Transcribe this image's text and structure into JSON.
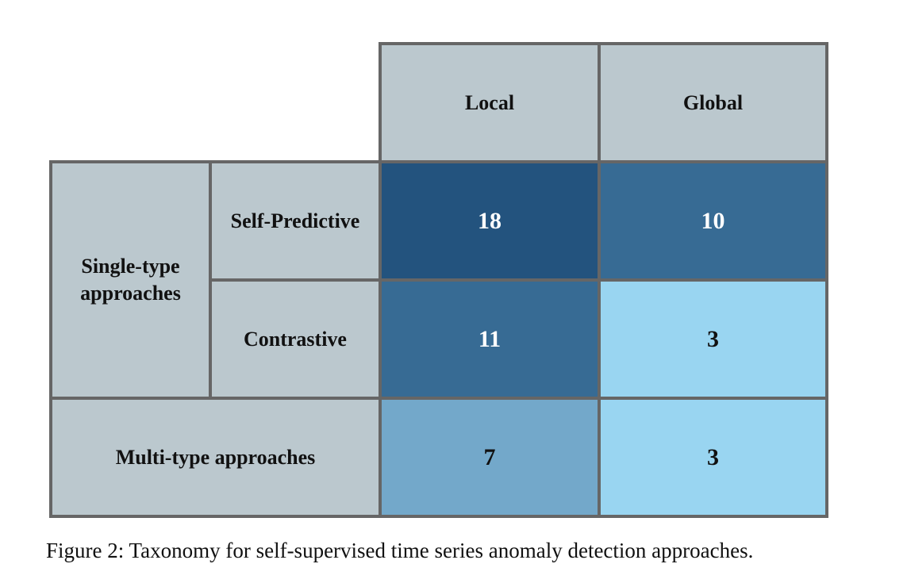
{
  "columns": [
    "Local",
    "Global"
  ],
  "row_groups": {
    "single": "Single-type approaches",
    "single_lines": [
      "Single-type",
      "approaches"
    ],
    "self_predictive": "Self-Predictive",
    "contrastive": "Contrastive",
    "multi": "Multi-type approaches"
  },
  "cells": {
    "self_predictive_local": "18",
    "self_predictive_global": "10",
    "contrastive_local": "11",
    "contrastive_global": "3",
    "multi_local": "7",
    "multi_global": "3"
  },
  "colors": {
    "header_bg": "#bbc8ce",
    "border": "#666666",
    "shade_darkest": "#23537e",
    "shade_dark": "#376b94",
    "shade_mid": "#73a8ca",
    "shade_light": "#99d5f1"
  },
  "caption": "Figure 2: Taxonomy for self-supervised time series anomaly detection approaches."
}
